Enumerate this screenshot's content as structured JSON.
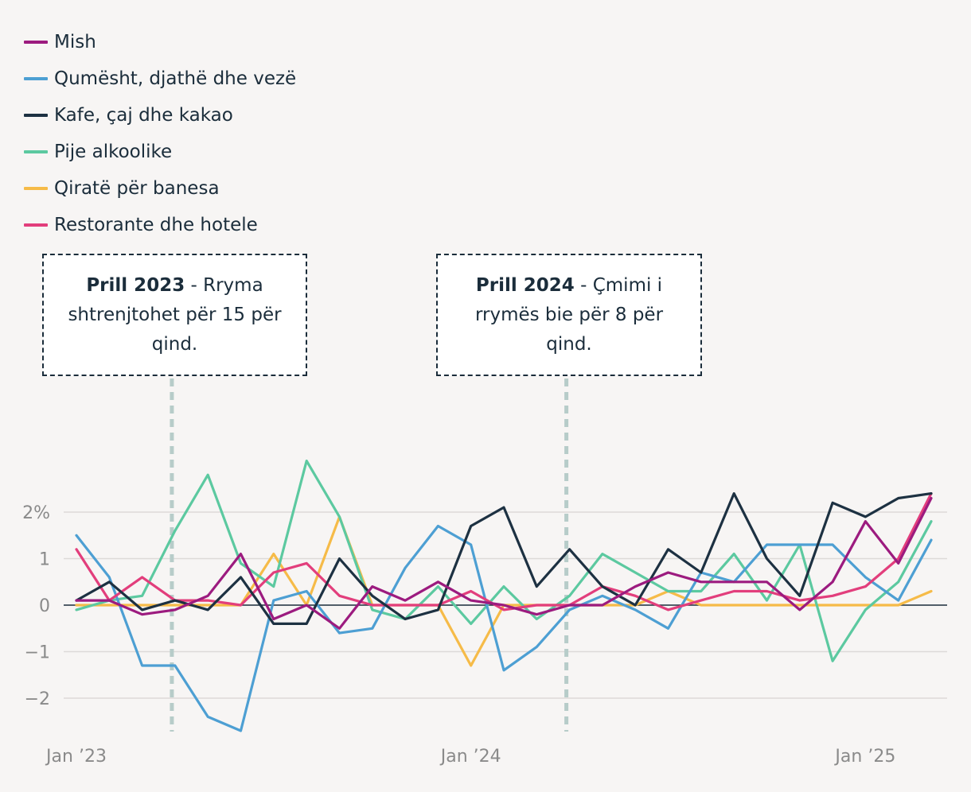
{
  "chart_data": {
    "type": "line",
    "title": "",
    "xlabel": "",
    "ylabel": "",
    "ylim": [
      -2.7,
      3.1
    ],
    "yticks": [
      {
        "v": 2,
        "label": "2%"
      },
      {
        "v": 1,
        "label": "1"
      },
      {
        "v": 0,
        "label": "0"
      },
      {
        "v": -1,
        "label": "−1"
      },
      {
        "v": -2,
        "label": "−2"
      }
    ],
    "xticks": [
      {
        "i": 0,
        "label": "Jan ’23"
      },
      {
        "i": 12,
        "label": "Jan ’24"
      },
      {
        "i": 24,
        "label": "Jan ’25"
      }
    ],
    "x_count": 27,
    "markers": [
      {
        "i": 3,
        "bold": "Prill 2023",
        "text": " - Rryma shtrenjtohet për 15 për qind."
      },
      {
        "i": 15,
        "bold": "Prill 2024",
        "text": " - Çmimi i rrymës bie për 8 për qind."
      }
    ],
    "series": [
      {
        "name": "Mish",
        "color": "#9c1b7f",
        "values": [
          0.1,
          0.1,
          -0.2,
          -0.1,
          0.2,
          1.1,
          -0.3,
          0.0,
          -0.5,
          0.4,
          0.1,
          0.5,
          0.1,
          0.0,
          -0.2,
          0.0,
          0.0,
          0.4,
          0.7,
          0.5,
          0.5,
          0.5,
          -0.1,
          0.5,
          1.8,
          0.9,
          2.3
        ]
      },
      {
        "name": "Qumësht, djathë dhe vezë",
        "color": "#4d9fd3",
        "values": [
          1.5,
          0.6,
          -1.3,
          -1.3,
          -2.4,
          -2.7,
          0.1,
          0.3,
          -0.6,
          -0.5,
          0.8,
          1.7,
          1.3,
          -1.4,
          -0.9,
          -0.1,
          0.2,
          -0.1,
          -0.5,
          0.7,
          0.5,
          1.3,
          1.3,
          1.3,
          0.6,
          0.1,
          1.4
        ]
      },
      {
        "name": "Kafe, çaj dhe kakao",
        "color": "#1d3142",
        "values": [
          0.1,
          0.5,
          -0.1,
          0.1,
          -0.1,
          0.6,
          -0.4,
          -0.4,
          1.0,
          0.2,
          -0.3,
          -0.1,
          1.7,
          2.1,
          0.4,
          1.2,
          0.4,
          0.0,
          1.2,
          0.7,
          2.4,
          1.0,
          0.2,
          2.2,
          1.9,
          2.3,
          2.4
        ]
      },
      {
        "name": "Pije alkoolike",
        "color": "#5cc9a0",
        "values": [
          -0.1,
          0.1,
          0.2,
          1.6,
          2.8,
          0.9,
          0.4,
          3.1,
          1.9,
          -0.1,
          -0.3,
          0.4,
          -0.4,
          0.4,
          -0.3,
          0.2,
          1.1,
          0.7,
          0.3,
          0.3,
          1.1,
          0.1,
          1.3,
          -1.2,
          -0.1,
          0.5,
          1.8
        ]
      },
      {
        "name": "Qiratë për banesa",
        "color": "#f6bb48",
        "values": [
          0.0,
          0.0,
          0.0,
          0.0,
          0.0,
          0.0,
          1.1,
          0.0,
          1.9,
          0.0,
          0.0,
          0.0,
          -1.3,
          0.0,
          0.0,
          0.0,
          0.0,
          0.0,
          0.3,
          0.0,
          0.0,
          0.0,
          0.0,
          0.0,
          0.0,
          0.0,
          0.3
        ]
      },
      {
        "name": "Restorante dhe hotele",
        "color": "#e23e7c",
        "values": [
          1.2,
          0.1,
          0.6,
          0.1,
          0.1,
          0.0,
          0.7,
          0.9,
          0.2,
          0.0,
          0.0,
          0.0,
          0.3,
          -0.1,
          0.0,
          0.0,
          0.4,
          0.2,
          -0.1,
          0.1,
          0.3,
          0.3,
          0.1,
          0.2,
          0.4,
          1.0,
          2.4
        ]
      }
    ]
  }
}
